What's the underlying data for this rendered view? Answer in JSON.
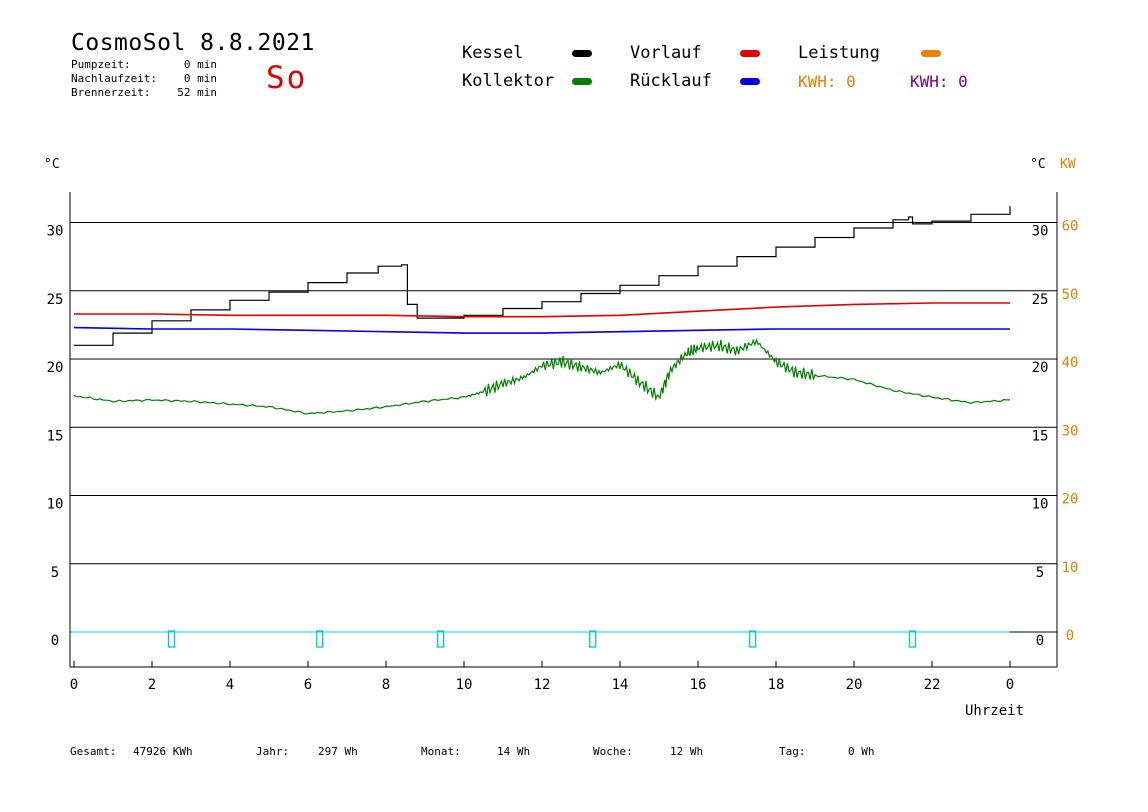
{
  "header": {
    "title": "CosmoSol 8.8.2021",
    "day": "So",
    "stats": [
      {
        "label": "Pumpzeit:",
        "value": "0 min"
      },
      {
        "label": "Nachlaufzeit:",
        "value": "0 min"
      },
      {
        "label": "Brennerzeit:",
        "value": "52 min"
      }
    ]
  },
  "legend": {
    "kessel": {
      "label": "Kessel",
      "color": "#000000"
    },
    "kollektor": {
      "label": "Kollektor",
      "color": "#008000"
    },
    "vorlauf": {
      "label": "Vorlauf",
      "color": "#e00000"
    },
    "ruecklauf": {
      "label": "Rücklauf",
      "color": "#0000e0"
    },
    "leistung": {
      "label": "Leistung",
      "color": "#f08000"
    },
    "kwh1": "KWH: 0",
    "kwh2": "KWH: 0"
  },
  "footer": [
    {
      "label": "Gesamt:",
      "value": "47926 KWh"
    },
    {
      "label": "Jahr:",
      "value": "297 Wh"
    },
    {
      "label": "Monat:",
      "value": "14 Wh"
    },
    {
      "label": "Woche:",
      "value": "12 Wh"
    },
    {
      "label": "Tag:",
      "value": "0 Wh"
    }
  ],
  "chart_data": {
    "type": "line",
    "title": "CosmoSol 8.8.2021",
    "xlabel": "Uhrzeit",
    "ylabel_left": "°C",
    "ylabel_right": "°C",
    "ylabel_right2": "KW",
    "xlim": [
      0,
      24
    ],
    "ylim": [
      -2.5,
      32.5
    ],
    "x_ticks": [
      "0",
      "2",
      "4",
      "6",
      "8",
      "10",
      "12",
      "14",
      "16",
      "18",
      "20",
      "22",
      "0"
    ],
    "y_ticks": [
      "0",
      "5",
      "10",
      "15",
      "20",
      "25",
      "30"
    ],
    "y2_ticks": [
      "0",
      "10",
      "20",
      "30",
      "40",
      "50",
      "60"
    ],
    "gridlines": [
      0,
      5,
      10,
      15,
      20,
      25,
      30
    ],
    "series": [
      {
        "name": "Kessel",
        "color": "#000000",
        "x": [
          0,
          1,
          2,
          3,
          4,
          5,
          6,
          7,
          7.8,
          8.4,
          8.55,
          8.8,
          9.5,
          10,
          11,
          12,
          13,
          14,
          15,
          16,
          17,
          18,
          19,
          20,
          21,
          21.4,
          21.5,
          22,
          23,
          24
        ],
        "y": [
          21.0,
          21.9,
          22.8,
          23.6,
          24.3,
          24.9,
          25.6,
          26.3,
          26.8,
          26.9,
          24.0,
          23.0,
          23.0,
          23.2,
          23.7,
          24.2,
          24.8,
          25.4,
          26.1,
          26.8,
          27.5,
          28.2,
          28.9,
          29.6,
          30.2,
          30.4,
          29.9,
          30.1,
          30.6,
          31.2
        ]
      },
      {
        "name": "Vorlauf",
        "color": "#e00000",
        "x": [
          0,
          2,
          4,
          6,
          8,
          10,
          12,
          14,
          16,
          18,
          20,
          22,
          24
        ],
        "y": [
          23.3,
          23.3,
          23.2,
          23.2,
          23.2,
          23.1,
          23.1,
          23.2,
          23.5,
          23.8,
          24.0,
          24.1,
          24.1
        ]
      },
      {
        "name": "Rücklauf",
        "color": "#0000e0",
        "x": [
          0,
          2,
          4,
          6,
          8,
          10,
          12,
          14,
          16,
          18,
          20,
          22,
          24
        ],
        "y": [
          22.3,
          22.2,
          22.2,
          22.1,
          22.0,
          21.9,
          21.9,
          22.0,
          22.1,
          22.2,
          22.2,
          22.2,
          22.2
        ]
      },
      {
        "name": "Kollektor",
        "color": "#008000",
        "x": [
          0,
          1,
          2,
          3,
          4,
          5,
          6,
          7,
          8,
          9,
          10,
          10.5,
          11,
          11.5,
          12,
          12.5,
          13,
          13.5,
          14,
          14.5,
          15,
          15.3,
          15.7,
          16,
          16.5,
          17,
          17.5,
          18,
          18.5,
          19,
          20,
          21,
          22,
          23,
          24
        ],
        "y": [
          17.3,
          16.9,
          17.0,
          16.9,
          16.7,
          16.5,
          16.0,
          16.2,
          16.5,
          16.9,
          17.2,
          17.6,
          18.2,
          18.6,
          19.5,
          19.8,
          19.4,
          19.0,
          19.6,
          18.3,
          17.2,
          19.2,
          20.4,
          20.8,
          21.0,
          20.6,
          21.3,
          19.8,
          19.0,
          18.8,
          18.5,
          17.7,
          17.2,
          16.8,
          17.0
        ]
      }
    ],
    "pump_markers_x": [
      2.5,
      6.3,
      9.4,
      13.3,
      17.4,
      21.5
    ]
  }
}
